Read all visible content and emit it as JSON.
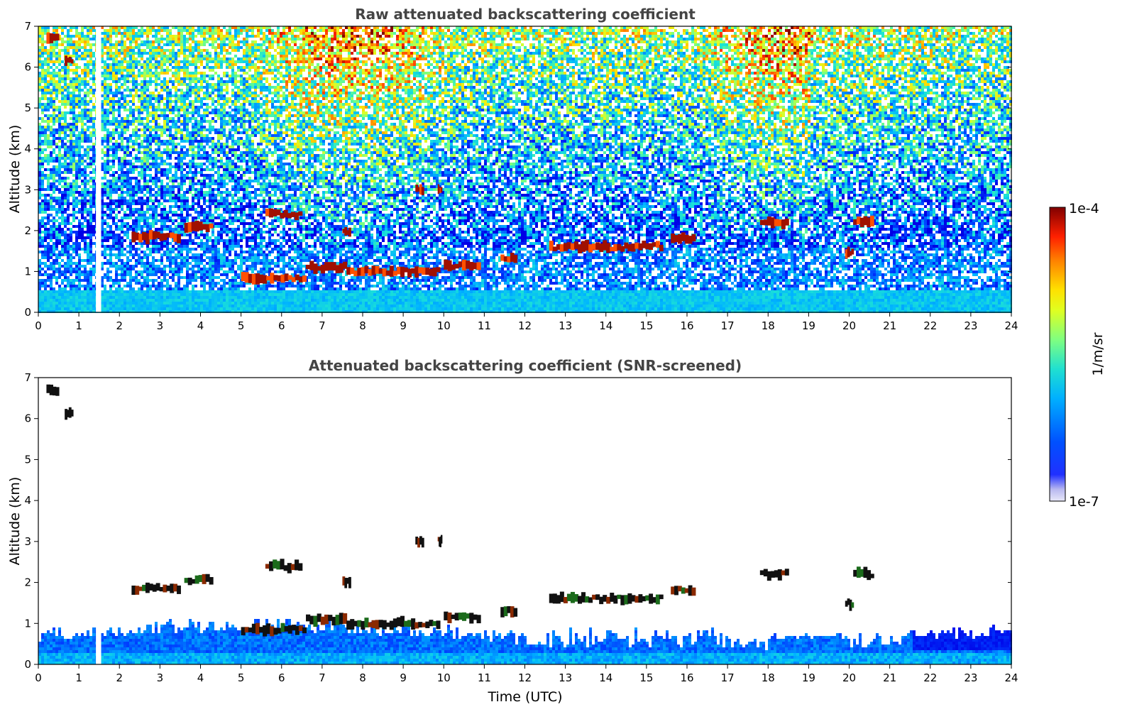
{
  "chart_data": [
    {
      "type": "heatmap",
      "title": "Raw attenuated backscattering coefficient",
      "xlabel": "",
      "ylabel": "Altitude (km)",
      "xlim": [
        0,
        24
      ],
      "ylim": [
        0,
        7
      ],
      "xticks": [
        "0",
        "1",
        "2",
        "3",
        "4",
        "5",
        "6",
        "7",
        "8",
        "9",
        "10",
        "11",
        "12",
        "13",
        "14",
        "15",
        "16",
        "17",
        "18",
        "19",
        "20",
        "21",
        "22",
        "23",
        "24"
      ],
      "yticks": [
        "0",
        "1",
        "2",
        "3",
        "4",
        "5",
        "6",
        "7"
      ],
      "data_gap_utc": [
        1.42,
        1.55
      ],
      "cloud_layers": [
        {
          "t_start": 0.2,
          "t_end": 0.5,
          "alt_km": 6.7
        },
        {
          "t_start": 0.65,
          "t_end": 0.85,
          "alt_km": 6.15
        },
        {
          "t_start": 2.3,
          "t_end": 3.5,
          "alt_km": 1.85
        },
        {
          "t_start": 3.6,
          "t_end": 4.3,
          "alt_km": 2.07
        },
        {
          "t_start": 5.6,
          "t_end": 6.5,
          "alt_km": 2.4
        },
        {
          "t_start": 7.5,
          "t_end": 7.7,
          "alt_km": 2.0
        },
        {
          "t_start": 9.3,
          "t_end": 9.5,
          "alt_km": 3.0
        },
        {
          "t_start": 9.85,
          "t_end": 9.95,
          "alt_km": 3.03
        },
        {
          "t_start": 5.0,
          "t_end": 6.6,
          "alt_km": 0.85
        },
        {
          "t_start": 6.6,
          "t_end": 7.6,
          "alt_km": 1.1
        },
        {
          "t_start": 7.6,
          "t_end": 9.9,
          "alt_km": 1.0
        },
        {
          "t_start": 10.0,
          "t_end": 10.9,
          "alt_km": 1.15
        },
        {
          "t_start": 11.4,
          "t_end": 11.8,
          "alt_km": 1.3
        },
        {
          "t_start": 12.6,
          "t_end": 14.8,
          "alt_km": 1.6
        },
        {
          "t_start": 14.8,
          "t_end": 15.4,
          "alt_km": 1.62
        },
        {
          "t_start": 15.6,
          "t_end": 16.2,
          "alt_km": 1.8
        },
        {
          "t_start": 17.8,
          "t_end": 18.5,
          "alt_km": 2.2
        },
        {
          "t_start": 19.9,
          "t_end": 20.1,
          "alt_km": 1.48
        },
        {
          "t_start": 20.1,
          "t_end": 20.6,
          "alt_km": 2.2
        }
      ]
    },
    {
      "type": "heatmap",
      "title": "Attenuated backscattering coefficient (SNR-screened)",
      "xlabel": "Time (UTC)",
      "ylabel": "Altitude (km)",
      "xlim": [
        0,
        24
      ],
      "ylim": [
        0,
        7
      ],
      "xticks": [
        "0",
        "1",
        "2",
        "3",
        "4",
        "5",
        "6",
        "7",
        "8",
        "9",
        "10",
        "11",
        "12",
        "13",
        "14",
        "15",
        "16",
        "17",
        "18",
        "19",
        "20",
        "21",
        "22",
        "23",
        "24"
      ],
      "yticks": [
        "0",
        "1",
        "2",
        "3",
        "4",
        "5",
        "6",
        "7"
      ],
      "data_gap_utc": [
        1.42,
        1.55
      ]
    }
  ],
  "colorbar": {
    "label": "1/m/sr",
    "max_label": "1e-4",
    "min_label": "1e-7",
    "scale": "log",
    "colormap": "jet"
  }
}
